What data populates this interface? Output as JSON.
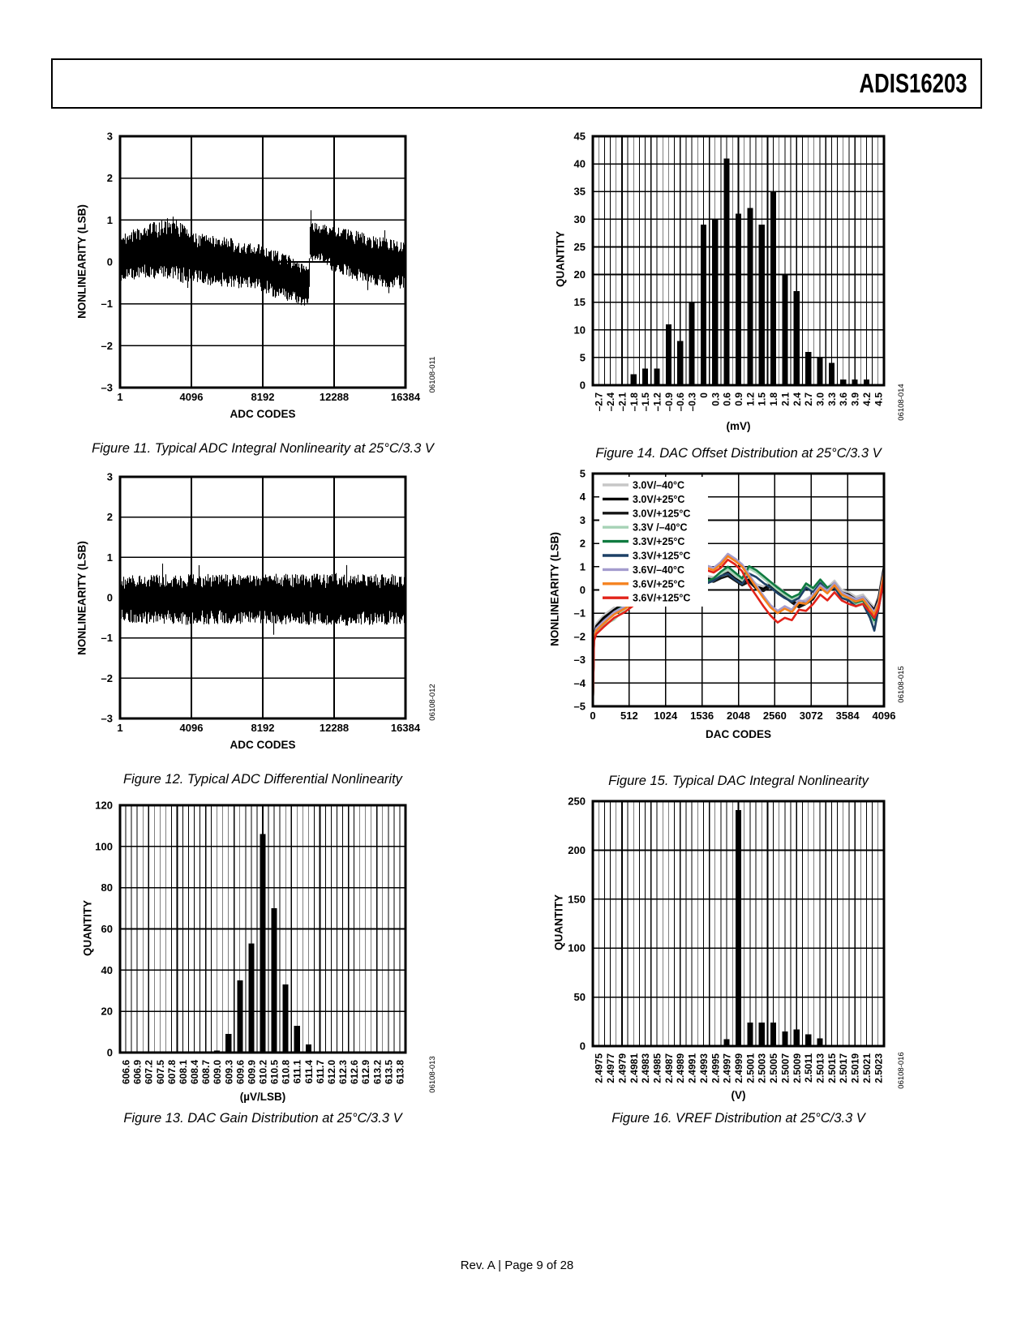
{
  "page": {
    "brand": "ADIS16203",
    "footer": "Rev. A | Page 9 of 28"
  },
  "chart_data": [
    {
      "id": "fig11",
      "type": "noise",
      "title": "Figure 11. Typical ADC Integral Nonlinearity at 25°C/3.3 V",
      "code": "06108-011",
      "xlabel": "ADC CODES",
      "ylabel": "NONLINEARITY (LSB)",
      "xlim": [
        1,
        16384
      ],
      "xticks": [
        1,
        4096,
        8192,
        12288,
        16384
      ],
      "xtick_labels": [
        "1",
        "4096",
        "8192",
        "12288",
        "16384"
      ],
      "ylim": [
        -3,
        3
      ],
      "yticks": [
        -3,
        -2,
        -1,
        0,
        1,
        2,
        3
      ],
      "ytick_labels": [
        "–3",
        "–2",
        "–1",
        "0",
        "1",
        "2",
        "3"
      ],
      "grid": "on",
      "seed": 111,
      "band": {
        "x": [
          1,
          1500,
          3000,
          3600,
          4096,
          6000,
          8192,
          9000,
          9800,
          10500,
          10860,
          10900,
          11500,
          12288,
          13500,
          15000,
          16384
        ],
        "center": [
          0.1,
          0.25,
          0.35,
          0.2,
          0.1,
          0.0,
          -0.15,
          -0.3,
          -0.4,
          -0.55,
          -0.6,
          0.55,
          0.45,
          0.3,
          0.15,
          0.0,
          -0.1
        ],
        "half": [
          0.55,
          0.65,
          0.75,
          0.7,
          0.6,
          0.6,
          0.55,
          0.6,
          0.55,
          0.5,
          0.5,
          0.5,
          0.5,
          0.55,
          0.6,
          0.6,
          0.55
        ]
      }
    },
    {
      "id": "fig12",
      "type": "noise",
      "title": "Figure 12. Typical ADC Differential Nonlinearity",
      "code": "06108-012",
      "xlabel": "ADC CODES",
      "ylabel": "NONLINEARITY (LSB)",
      "xlim": [
        1,
        16384
      ],
      "xticks": [
        1,
        4096,
        8192,
        12288,
        16384
      ],
      "xtick_labels": [
        "1",
        "4096",
        "8192",
        "12288",
        "16384"
      ],
      "ylim": [
        -3,
        3
      ],
      "yticks": [
        -3,
        -2,
        -1,
        0,
        1,
        2,
        3
      ],
      "ytick_labels": [
        "–3",
        "–2",
        "–1",
        "0",
        "1",
        "2",
        "3"
      ],
      "grid": "on",
      "seed": 222,
      "band": {
        "x": [
          1,
          4000,
          8192,
          12000,
          16384
        ],
        "center": [
          -0.03,
          -0.05,
          -0.02,
          -0.06,
          -0.04
        ],
        "half": [
          0.6,
          0.64,
          0.62,
          0.65,
          0.62
        ]
      }
    },
    {
      "id": "fig13",
      "type": "histogram",
      "title": "Figure 13. DAC Gain Distribution at 25°C/3.3 V",
      "code": "06108-013",
      "xlabel": "(µV/LSB)",
      "ylabel": "QUANTITY",
      "categories": [
        "606.6",
        "606.9",
        "607.2",
        "607.5",
        "607.8",
        "608.1",
        "608.4",
        "608.7",
        "609.0",
        "609.3",
        "609.6",
        "609.9",
        "610.2",
        "610.5",
        "610.8",
        "611.1",
        "611.4",
        "611.7",
        "612.0",
        "612.3",
        "612.6",
        "612.9",
        "613.2",
        "613.5",
        "613.8"
      ],
      "values": [
        0,
        0,
        0,
        0,
        0,
        0,
        0,
        0,
        1,
        9,
        35,
        53,
        106,
        70,
        33,
        13,
        4,
        0,
        0,
        0,
        0,
        0,
        0,
        0,
        0
      ],
      "ylim": [
        0,
        120
      ],
      "ystep": 20,
      "ytick_labels": [
        "0",
        "20",
        "40",
        "60",
        "80",
        "100",
        "120"
      ],
      "grid": "on"
    },
    {
      "id": "fig14",
      "type": "histogram",
      "title": "Figure 14. DAC Offset Distribution at 25°C/3.3 V",
      "code": "06108-014",
      "xlabel": "(mV)",
      "ylabel": "QUANTITY",
      "categories": [
        "–2.7",
        "–2.4",
        "–2.1",
        "–1.8",
        "–1.5",
        "–1.2",
        "–0.9",
        "–0.6",
        "–0.3",
        "0",
        "0.3",
        "0.6",
        "0.9",
        "1.2",
        "1.5",
        "1.8",
        "2.1",
        "2.4",
        "2.7",
        "3.0",
        "3.3",
        "3.6",
        "3.9",
        "4.2",
        "4.5"
      ],
      "values": [
        0,
        0,
        0,
        2,
        3,
        3,
        11,
        8,
        15,
        29,
        30,
        41,
        31,
        32,
        29,
        35,
        20,
        17,
        6,
        5,
        4,
        1,
        1,
        1,
        0
      ],
      "ylim": [
        0,
        45
      ],
      "ystep": 5,
      "ytick_labels": [
        "0",
        "5",
        "10",
        "15",
        "20",
        "25",
        "30",
        "35",
        "40",
        "45"
      ],
      "grid": "on"
    },
    {
      "id": "fig15",
      "type": "line",
      "title": "Figure 15. Typical DAC Integral Nonlinearity",
      "code": "06108-015",
      "xlabel": "DAC CODES",
      "ylabel": "NONLINEARITY (LSB)",
      "xlim": [
        0,
        4096
      ],
      "xticks": [
        0,
        512,
        1024,
        1536,
        2048,
        2560,
        3072,
        3584,
        4096
      ],
      "xtick_labels": [
        "0",
        "512",
        "1024",
        "1536",
        "2048",
        "2560",
        "3072",
        "3584",
        "4096"
      ],
      "ylim": [
        -5,
        5
      ],
      "yticks": [
        -5,
        -4,
        -3,
        -2,
        -1,
        0,
        1,
        2,
        3,
        4,
        5
      ],
      "ytick_labels": [
        "–5",
        "–4",
        "–3",
        "–2",
        "–1",
        "0",
        "1",
        "2",
        "3",
        "4",
        "5"
      ],
      "grid": "on",
      "legend_position": "top-left",
      "x": [
        0,
        16,
        48,
        150,
        300,
        450,
        600,
        750,
        900,
        1000,
        1100,
        1200,
        1300,
        1400,
        1500,
        1600,
        1700,
        1800,
        1900,
        2000,
        2100,
        2200,
        2300,
        2400,
        2500,
        2600,
        2700,
        2800,
        2900,
        3000,
        3100,
        3200,
        3300,
        3400,
        3500,
        3600,
        3700,
        3800,
        3900,
        3960,
        4020,
        4096
      ],
      "series": [
        {
          "name": "3.0V/–40°C",
          "color": "#c7c7c7",
          "y": [
            -5,
            -1.95,
            -1.45,
            -1.1,
            -0.75,
            -0.45,
            -0.2,
            -0.05,
            0.15,
            0.4,
            0.2,
            0.5,
            0.3,
            0.55,
            0.65,
            0.6,
            0.55,
            0.7,
            0.85,
            0.6,
            0.4,
            0.55,
            0.25,
            0.15,
            0.35,
            0.15,
            -0.1,
            -0.35,
            -0.55,
            -0.4,
            -0.2,
            0.3,
            0.1,
            0.4,
            0.0,
            -0.1,
            -0.3,
            -0.2,
            -0.55,
            -0.75,
            -0.25,
            1.05
          ]
        },
        {
          "name": "3.0V/+25°C",
          "color": "#000000",
          "y": [
            -5,
            -2.0,
            -1.55,
            -1.2,
            -0.85,
            -0.55,
            -0.3,
            -0.15,
            0.05,
            0.3,
            0.1,
            0.4,
            0.2,
            0.45,
            0.55,
            0.5,
            0.45,
            0.6,
            0.75,
            0.5,
            0.3,
            0.45,
            0.15,
            0.05,
            0.25,
            0.05,
            -0.2,
            -0.45,
            -0.65,
            -0.5,
            -0.3,
            0.2,
            0.0,
            0.3,
            -0.1,
            -0.2,
            -0.4,
            -0.3,
            -0.65,
            -0.85,
            -0.35,
            1.0
          ]
        },
        {
          "name": "3.0V/+125°C",
          "color": "#141414",
          "y": [
            -5,
            -2.05,
            -1.65,
            -1.3,
            -0.95,
            -0.65,
            -0.4,
            -0.25,
            -0.05,
            0.2,
            0.0,
            0.3,
            0.1,
            0.35,
            0.45,
            0.4,
            0.35,
            0.5,
            0.6,
            0.4,
            0.2,
            0.35,
            0.05,
            -0.05,
            0.15,
            -0.05,
            -0.3,
            -0.55,
            -0.75,
            -0.6,
            -0.4,
            0.1,
            -0.1,
            0.2,
            -0.2,
            -0.3,
            -0.5,
            -0.4,
            -0.75,
            -0.95,
            -0.45,
            0.9
          ]
        },
        {
          "name": "3.3V /–40°C",
          "color": "#a6d3b6",
          "y": [
            -5,
            -2.1,
            -1.8,
            -1.5,
            -1.28,
            -0.82,
            -0.47,
            -0.32,
            -0.1,
            0.18,
            -0.05,
            0.28,
            0.02,
            0.4,
            0.32,
            0.28,
            0.4,
            0.68,
            0.9,
            0.65,
            0.4,
            0.92,
            0.75,
            0.5,
            0.25,
            0.0,
            -0.22,
            -0.42,
            -0.28,
            0.18,
            -0.02,
            0.35,
            0.0,
            0.15,
            -0.3,
            -0.4,
            -0.65,
            -0.55,
            -1.1,
            -1.4,
            -0.7,
            0.5
          ]
        },
        {
          "name": "3.3V/+25°C",
          "color": "#0f7b40",
          "y": [
            -5,
            -2.05,
            -1.7,
            -1.4,
            -0.95,
            -0.65,
            -0.35,
            -0.2,
            0.0,
            0.28,
            0.05,
            0.38,
            0.12,
            0.5,
            0.42,
            0.38,
            0.5,
            0.78,
            1.0,
            0.75,
            0.5,
            1.02,
            0.85,
            0.6,
            0.35,
            0.1,
            -0.12,
            -0.32,
            -0.18,
            0.28,
            0.08,
            0.45,
            0.1,
            0.25,
            -0.2,
            -0.3,
            -0.55,
            -0.45,
            -1.0,
            -1.3,
            -0.6,
            0.6
          ]
        },
        {
          "name": "3.3V/+125°C",
          "color": "#1d4066",
          "y": [
            -5,
            -2.1,
            -1.75,
            -1.45,
            -1.0,
            -0.7,
            -0.42,
            -0.28,
            -0.08,
            0.2,
            -0.05,
            0.3,
            0.05,
            0.4,
            0.32,
            0.28,
            0.4,
            0.6,
            0.7,
            0.45,
            0.25,
            0.7,
            0.55,
            0.3,
            0.1,
            -0.15,
            -0.35,
            -0.5,
            -0.35,
            0.1,
            -0.1,
            0.3,
            -0.05,
            0.1,
            -0.35,
            -0.45,
            -0.7,
            -0.6,
            -1.2,
            -1.75,
            -0.8,
            0.4
          ]
        },
        {
          "name": "3.6V/–40°C",
          "color": "#a49cce",
          "y": [
            -5,
            -2.0,
            -1.65,
            -1.35,
            -0.95,
            -0.7,
            -0.4,
            -0.2,
            0.05,
            0.4,
            0.2,
            0.55,
            0.35,
            0.7,
            0.95,
            1.05,
            0.95,
            1.2,
            1.55,
            1.35,
            1.1,
            0.65,
            0.2,
            -0.25,
            -0.65,
            -0.9,
            -0.7,
            -0.85,
            -0.45,
            -0.5,
            -0.2,
            0.2,
            -0.05,
            0.3,
            -0.1,
            -0.25,
            -0.4,
            -0.3,
            -0.7,
            -0.95,
            -0.5,
            0.85
          ]
        },
        {
          "name": "3.6V/+25°C",
          "color": "#f5821f",
          "y": [
            -5,
            -2.1,
            -1.75,
            -1.45,
            -1.05,
            -0.8,
            -0.5,
            -0.3,
            -0.05,
            0.3,
            0.1,
            0.45,
            0.25,
            0.6,
            0.85,
            0.95,
            0.85,
            1.1,
            1.45,
            1.25,
            1.0,
            0.55,
            0.1,
            -0.35,
            -0.75,
            -1.0,
            -0.8,
            -0.95,
            -0.55,
            -0.6,
            -0.3,
            0.1,
            -0.15,
            0.2,
            -0.2,
            -0.35,
            -0.5,
            -0.4,
            -0.8,
            -1.05,
            -0.6,
            0.75
          ]
        },
        {
          "name": "3.6V/+125°C",
          "color": "#e2231a",
          "y": [
            -5,
            -2.2,
            -1.9,
            -1.6,
            -1.2,
            -0.95,
            -0.6,
            -0.4,
            -0.15,
            0.2,
            0.0,
            0.35,
            0.15,
            0.5,
            0.75,
            0.85,
            0.75,
            0.95,
            1.3,
            1.1,
            0.8,
            0.2,
            -0.25,
            -0.7,
            -1.1,
            -1.4,
            -1.2,
            -1.3,
            -0.85,
            -0.9,
            -0.6,
            -0.2,
            -0.45,
            -0.1,
            -0.45,
            -0.6,
            -0.7,
            -0.6,
            -0.95,
            -1.2,
            -0.8,
            0.5
          ]
        }
      ]
    },
    {
      "id": "fig16",
      "type": "histogram",
      "title": "Figure 16. VREF Distribution at 25°C/3.3 V",
      "code": "06108-016",
      "xlabel": "(V)",
      "ylabel": "QUANTITY",
      "categories": [
        "2.4975",
        "2.4977",
        "2.4979",
        "2.4981",
        "2.4983",
        "2.4985",
        "2.4987",
        "2.4989",
        "2.4991",
        "2.4993",
        "2.4995",
        "2.4997",
        "2.4999",
        "2.5001",
        "2.5003",
        "2.5005",
        "2.5007",
        "2.5009",
        "2.5011",
        "2.5013",
        "2.5015",
        "2.5017",
        "2.5019",
        "2.5021",
        "2.5023"
      ],
      "values": [
        1,
        0,
        0,
        0,
        0,
        0,
        0,
        0,
        0,
        0,
        1,
        7,
        241,
        24,
        24,
        24,
        15,
        17,
        12,
        8,
        1,
        0,
        0,
        0,
        0
      ],
      "ylim": [
        0,
        250
      ],
      "ystep": 50,
      "ytick_labels": [
        "0",
        "50",
        "100",
        "150",
        "200",
        "250"
      ],
      "grid": "on"
    }
  ]
}
